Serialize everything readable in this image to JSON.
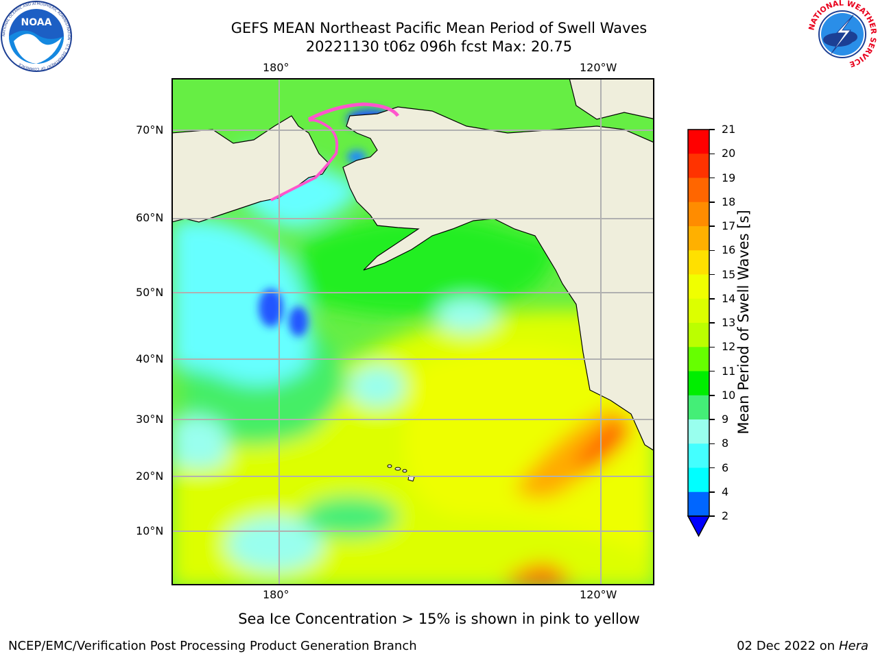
{
  "header": {
    "title_line1": "GEFS MEAN Northeast Pacific Mean Period of Swell Waves",
    "title_line2": "20221130 t06z 096h fcst   Max: 20.75"
  },
  "logos": {
    "noaa": "NOAA",
    "noaa_ring": "NATIONAL OCEANIC AND ATMOSPHERIC ADMINISTRATION · U.S. DEPARTMENT OF COMMERCE",
    "nws_ring": "NATIONAL WEATHER SERVICE"
  },
  "map": {
    "top_lon_labels": [
      "180°",
      "120°W"
    ],
    "bottom_lon_labels": [
      "180°",
      "120°W"
    ],
    "lat_labels": [
      "70°N",
      "60°N",
      "50°N",
      "40°N",
      "30°N",
      "20°N",
      "10°N"
    ],
    "colors": {
      "land": "#efeedc",
      "frame": "#000000",
      "grid": "#b0b0b0"
    }
  },
  "colorbar": {
    "label": "Mean Period of Swell Waves [s]",
    "ticks": [
      "21",
      "20",
      "19",
      "18",
      "17",
      "16",
      "15",
      "14",
      "13",
      "12",
      "11",
      "10",
      "9",
      "8",
      "6",
      "4",
      "2"
    ],
    "colors": [
      "#ff0000",
      "#ff3300",
      "#ff6600",
      "#ff8c00",
      "#ffb000",
      "#ffe000",
      "#f0ff00",
      "#dcff00",
      "#bbff00",
      "#66ff00",
      "#00ee00",
      "#44ee77",
      "#99ffee",
      "#44ffff",
      "#00ffff",
      "#0066ff"
    ],
    "extend_color": "#0000ff"
  },
  "footer": {
    "caption": "Sea Ice Concentration > 15% is shown in pink to yellow",
    "left": "NCEP/EMC/Verification Post Processing Product Generation Branch",
    "right_date": "02 Dec 2022 on",
    "right_host": "Hera"
  }
}
